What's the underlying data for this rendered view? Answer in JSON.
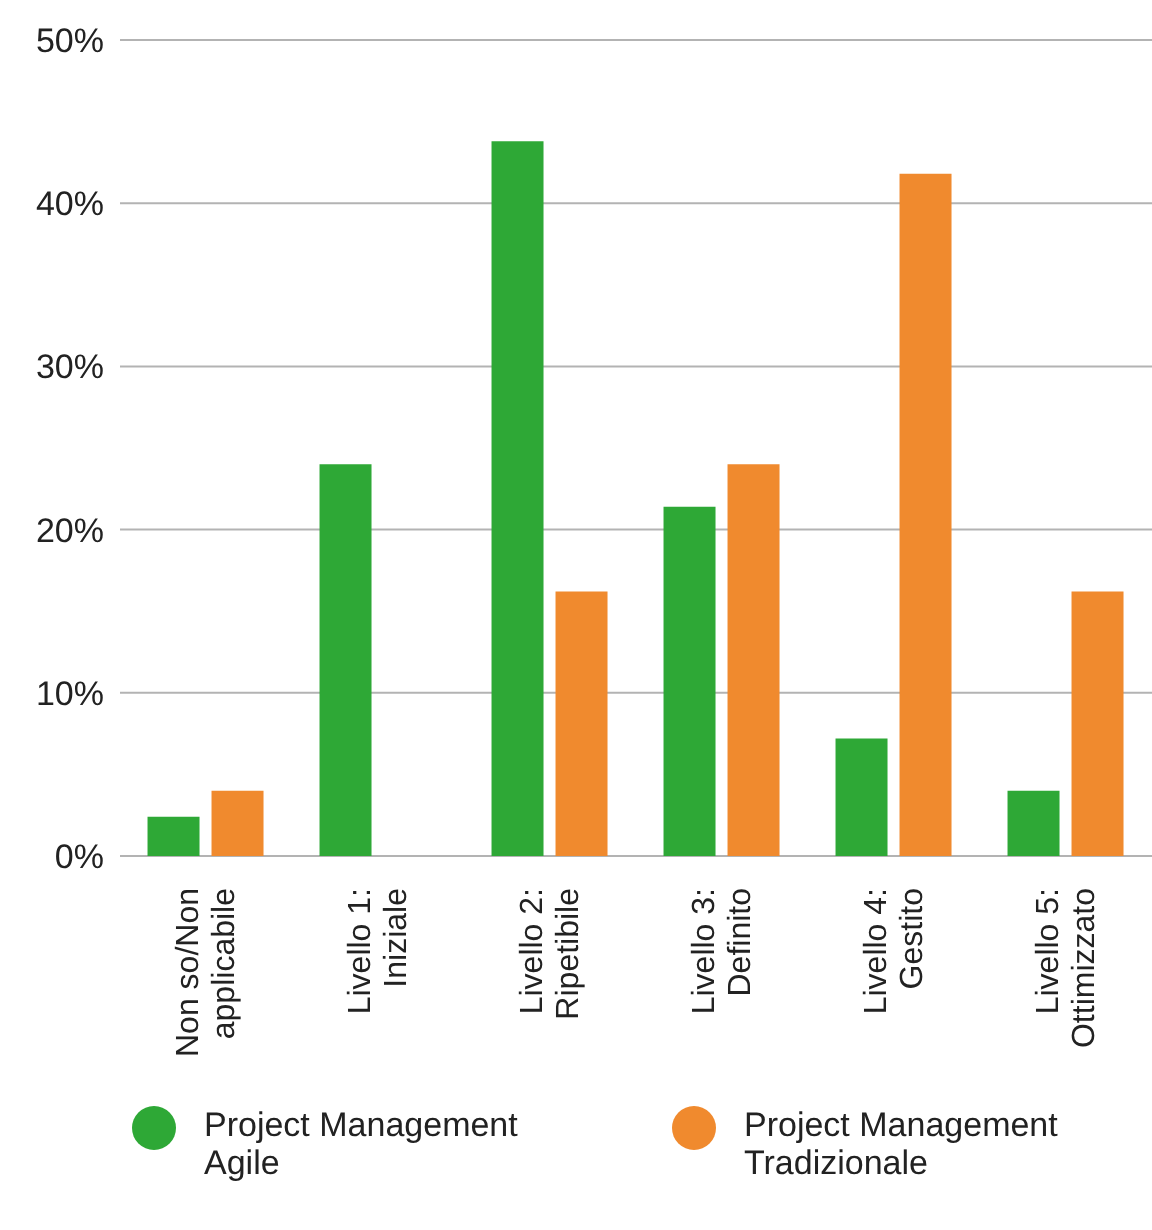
{
  "chart_data": {
    "type": "bar",
    "categories": [
      "Non so/Non applicabile",
      "Livello 1: Iniziale",
      "Livello 2: Ripetibile",
      "Livello 3: Definito",
      "Livello 4: Gestito",
      "Livello 5: Ottimizzato"
    ],
    "series": [
      {
        "name": "Project Management Agile",
        "color": "#2ea836",
        "values": [
          2.4,
          24.0,
          43.8,
          21.4,
          7.2,
          4.0
        ]
      },
      {
        "name": "Project Management Tradizionale",
        "color": "#f08a2e",
        "values": [
          4.0,
          0,
          16.2,
          24.0,
          41.8,
          16.2
        ]
      }
    ],
    "ylim": [
      0,
      50
    ],
    "yticks": [
      {
        "value": 0,
        "label": "0%"
      },
      {
        "value": 10,
        "label": "10%"
      },
      {
        "value": 20,
        "label": "20%"
      },
      {
        "value": 30,
        "label": "30%"
      },
      {
        "value": 40,
        "label": "40%"
      },
      {
        "value": 50,
        "label": "50%"
      }
    ],
    "grid": "y",
    "legend": "bottom"
  }
}
